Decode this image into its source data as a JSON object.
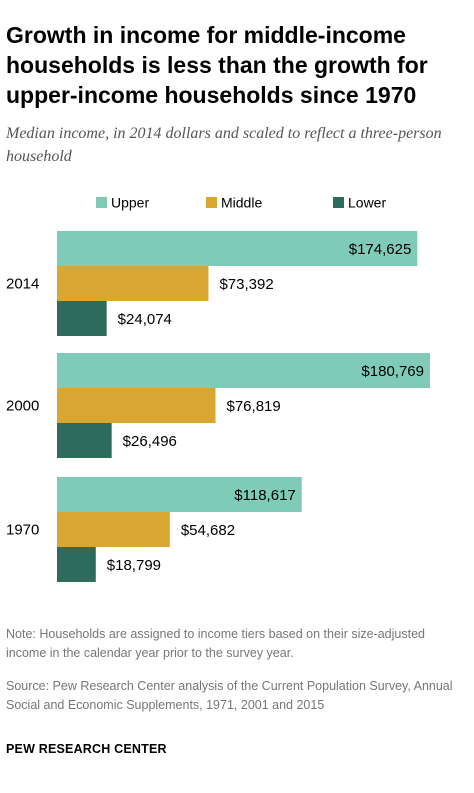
{
  "title": "Growth in income for middle-income households is less than the growth for upper-income households since 1970",
  "subtitle": "Median income, in 2014 dollars and scaled to reflect a three-person household",
  "note": "Note: Households are assigned to income tiers based on their size-adjusted income in the calendar year prior to the survey year.",
  "source": "Source: Pew Research Center analysis of the Current Population Survey, Annual Social and Economic Supplements, 1971, 2001 and 2015",
  "brand": "PEW RESEARCH CENTER",
  "chart_data": {
    "type": "bar",
    "orientation": "horizontal",
    "categories": [
      "2014",
      "2000",
      "1970"
    ],
    "series": [
      {
        "name": "Upper",
        "color": "#7fcbb8",
        "values": [
          174625,
          180769,
          118617
        ],
        "labels": [
          "$174,625",
          "$180,769",
          "$118,617"
        ]
      },
      {
        "name": "Middle",
        "color": "#d9a634",
        "values": [
          73392,
          76819,
          54682
        ],
        "labels": [
          "$73,392",
          "$76,819",
          "$54,682"
        ]
      },
      {
        "name": "Lower",
        "color": "#2e6b5c",
        "values": [
          24074,
          26496,
          18799
        ],
        "labels": [
          "$24,074",
          "$26,496",
          "$18,799"
        ]
      }
    ],
    "legend_position": "top",
    "grid": false,
    "xlim": [
      0,
      195000
    ]
  }
}
